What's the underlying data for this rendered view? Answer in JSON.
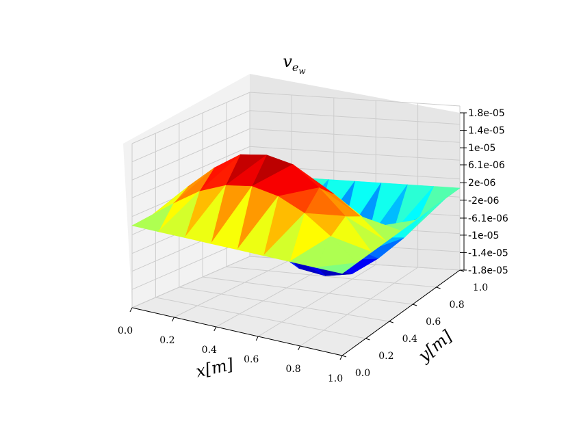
{
  "chart_data": {
    "type": "surface3d",
    "title": "v_{e_w}",
    "title_parts": {
      "base": "v",
      "sub": "e",
      "subsub": "w"
    },
    "xlabel": "x[m]",
    "ylabel": "y[m]",
    "colormap": "jet",
    "xlim": [
      0.0,
      1.0
    ],
    "ylim": [
      0.0,
      1.0
    ],
    "zlim": [
      -1.8e-05,
      1.8e-05
    ],
    "x_ticks": [
      "0.0",
      "0.2",
      "0.4",
      "0.6",
      "0.8",
      "1.0"
    ],
    "y_ticks": [
      "0.0",
      "0.2",
      "0.4",
      "0.6",
      "0.8",
      "1.0"
    ],
    "z_ticks": [
      "-1.8e-05",
      "-1.4e-05",
      "-1e-05",
      "-6.1e-06",
      "-2e-06",
      "2e-06",
      "6.1e-06",
      "1e-05",
      "1.4e-05",
      "1.8e-05"
    ],
    "z_tick_values": [
      -1.8e-05,
      -1.4e-05,
      -1e-05,
      -6.1e-06,
      -2e-06,
      2e-06,
      6.1e-06,
      1e-05,
      1.4e-05,
      1.8e-05
    ],
    "grid": true,
    "x": [
      0.0,
      0.125,
      0.25,
      0.375,
      0.5,
      0.625,
      0.75,
      0.875,
      1.0
    ],
    "y": [
      0.0,
      0.125,
      0.25,
      0.375,
      0.5,
      0.625,
      0.75,
      0.875,
      1.0
    ],
    "z": [
      [
        0,
        0,
        0,
        0,
        0,
        0,
        0,
        0,
        0
      ],
      [
        0,
        4.6e-06,
        6.8e-06,
        4.6e-06,
        0,
        -4.6e-06,
        -6.8e-06,
        -4.6e-06,
        0
      ],
      [
        0,
        8.5e-06,
        1.2e-05,
        8.5e-06,
        0,
        -8.5e-06,
        -1.2e-05,
        -8.5e-06,
        0
      ],
      [
        0,
        1.1e-05,
        1.6e-05,
        1.1e-05,
        0,
        -1.1e-05,
        -1.6e-05,
        -1.1e-05,
        0
      ],
      [
        0,
        1.2e-05,
        1.7e-05,
        1.2e-05,
        0,
        -1.2e-05,
        -1.7e-05,
        -1.2e-05,
        0
      ],
      [
        0,
        1.1e-05,
        1.6e-05,
        1.1e-05,
        0,
        -1.1e-05,
        -1.6e-05,
        -1.1e-05,
        0
      ],
      [
        0,
        8.5e-06,
        1.2e-05,
        8.5e-06,
        0,
        -8.5e-06,
        -1.2e-05,
        -8.5e-06,
        0
      ],
      [
        0,
        4.6e-06,
        6.8e-06,
        4.6e-06,
        0,
        -4.6e-06,
        -6.8e-06,
        -4.6e-06,
        0
      ],
      [
        0,
        0,
        0,
        0,
        0,
        0,
        0,
        0,
        0
      ]
    ]
  }
}
